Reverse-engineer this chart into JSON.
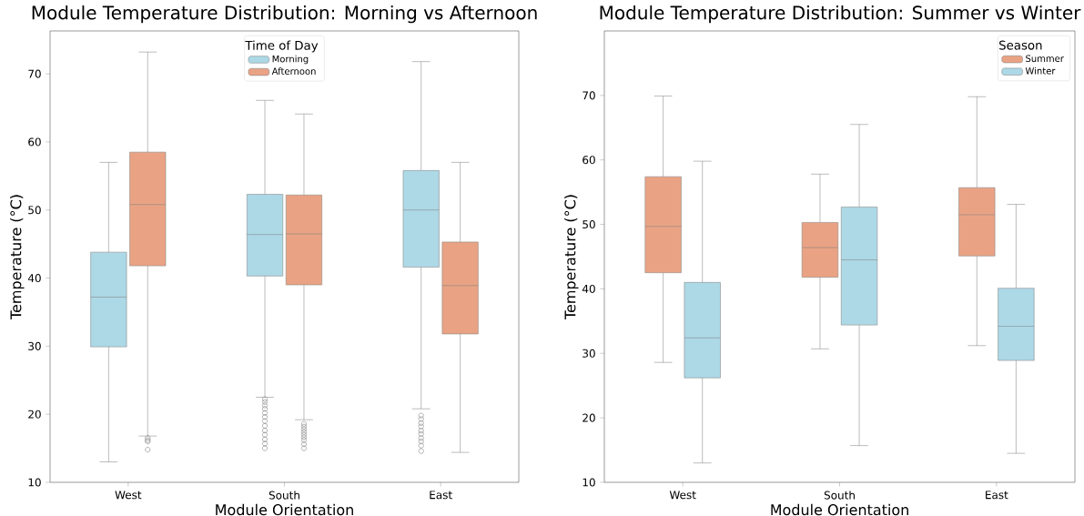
{
  "chart_data": [
    {
      "type": "box",
      "title": "Module Temperature Distribution: Morning vs Afternoon",
      "xlabel": "Module Orientation",
      "ylabel": "Temperature (°C)",
      "legend_title": "Time of Day",
      "legend": "top",
      "categories": [
        "West",
        "South",
        "East"
      ],
      "ylim": [
        10,
        76.3
      ],
      "yticks": [
        10,
        20,
        30,
        40,
        50,
        60,
        70
      ],
      "series": [
        {
          "name": "Morning",
          "color": "#add8e6",
          "boxes": [
            {
              "low": 13.0,
              "q1": 29.9,
              "median": 37.2,
              "q3": 43.8,
              "high": 57.0
            },
            {
              "low": 22.5,
              "q1": 40.3,
              "median": 46.4,
              "q3": 52.3,
              "high": 66.1,
              "outliers": [
                22.2,
                21.8,
                21.3,
                20.8,
                20.2,
                19.6,
                19.0,
                18.3,
                17.6,
                17.0,
                16.3,
                15.7,
                15.0
              ]
            },
            {
              "low": 20.8,
              "q1": 41.6,
              "median": 50.0,
              "q3": 55.8,
              "high": 71.8,
              "outliers": [
                19.8,
                19.3,
                18.7,
                18.2,
                17.6,
                17.1,
                16.5,
                16.0,
                15.4,
                14.6
              ]
            }
          ]
        },
        {
          "name": "Afternoon",
          "color": "#e9a384",
          "boxes": [
            {
              "low": 16.8,
              "q1": 41.8,
              "median": 50.8,
              "q3": 58.5,
              "high": 73.2,
              "outliers": [
                16.5,
                16.2,
                16.0,
                14.8
              ]
            },
            {
              "low": 19.2,
              "q1": 39.0,
              "median": 46.5,
              "q3": 52.2,
              "high": 64.1,
              "outliers": [
                18.6,
                18.2,
                17.8,
                17.4,
                17.0,
                16.6,
                16.2,
                15.6,
                15.0
              ]
            },
            {
              "low": 14.4,
              "q1": 31.8,
              "median": 38.9,
              "q3": 45.3,
              "high": 57.0
            }
          ]
        }
      ]
    },
    {
      "type": "box",
      "title": "Module Temperature Distribution: Summer vs Winter",
      "xlabel": "Module Orientation",
      "ylabel": "Temperature (°C)",
      "legend_title": "Season",
      "legend": "top right",
      "categories": [
        "West",
        "South",
        "East"
      ],
      "ylim": [
        10,
        80
      ],
      "yticks": [
        10,
        20,
        30,
        40,
        50,
        60,
        70
      ],
      "series": [
        {
          "name": "Summer",
          "color": "#e9a384",
          "boxes": [
            {
              "low": 28.6,
              "q1": 42.5,
              "median": 49.7,
              "q3": 57.4,
              "high": 69.9
            },
            {
              "low": 30.7,
              "q1": 41.8,
              "median": 46.4,
              "q3": 50.3,
              "high": 57.8
            },
            {
              "low": 31.2,
              "q1": 45.1,
              "median": 51.5,
              "q3": 55.7,
              "high": 69.8
            }
          ]
        },
        {
          "name": "Winter",
          "color": "#add8e6",
          "boxes": [
            {
              "low": 13.0,
              "q1": 26.2,
              "median": 32.4,
              "q3": 41.0,
              "high": 59.8
            },
            {
              "low": 15.7,
              "q1": 34.4,
              "median": 44.5,
              "q3": 52.7,
              "high": 65.5
            },
            {
              "low": 14.5,
              "q1": 28.9,
              "median": 34.2,
              "q3": 40.1,
              "high": 53.1
            }
          ]
        }
      ]
    }
  ]
}
